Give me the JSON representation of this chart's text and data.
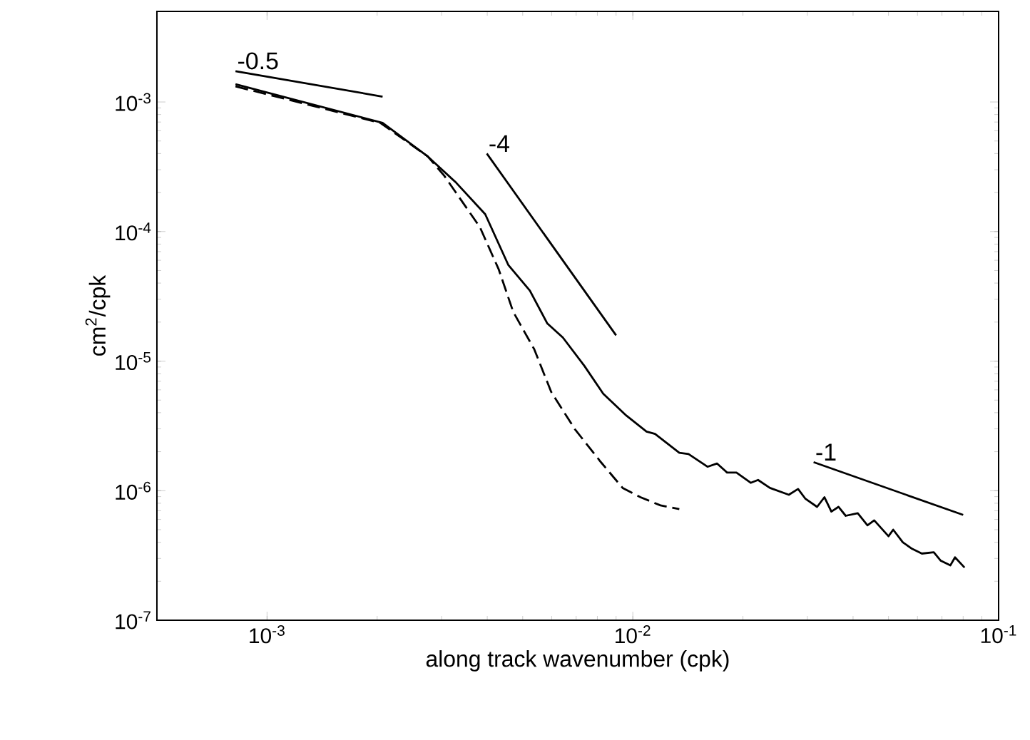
{
  "chart_data": {
    "type": "line",
    "xlabel": "along track wavenumber (cpk)",
    "ylabel": "cm$^{2}$/cpk",
    "log": "xy",
    "xlim": [
      0.0005,
      0.1
    ],
    "ylim": [
      1e-07,
      0.005
    ],
    "xticks": [
      {
        "value": 0.001,
        "label": "10$^{-3}$"
      },
      {
        "value": 0.01,
        "label": "10$^{-2}$"
      },
      {
        "value": 0.1,
        "label": "10$^{-1}$"
      }
    ],
    "yticks": [
      {
        "value": 1e-07,
        "label": "10$^{-7}$"
      },
      {
        "value": 1e-06,
        "label": "10$^{-6}$"
      },
      {
        "value": 1e-05,
        "label": "10$^{-5}$"
      },
      {
        "value": 0.0001,
        "label": "10$^{-4}$"
      },
      {
        "value": 0.001,
        "label": "10$^{-3}$"
      }
    ],
    "series": [
      {
        "color": "#000000",
        "line_style": "solid",
        "x": [
          0.00082,
          0.00207,
          0.00275,
          0.00329,
          0.00395,
          0.00457,
          0.00523,
          0.00584,
          0.00644,
          0.00737,
          0.0083,
          0.0096,
          0.0109,
          0.0115,
          0.0134,
          0.0142,
          0.016,
          0.017,
          0.0181,
          0.0192,
          0.021,
          0.022,
          0.0237,
          0.0267,
          0.0283,
          0.0296,
          0.0319,
          0.0334,
          0.0349,
          0.0365,
          0.0382,
          0.0412,
          0.0438,
          0.0457,
          0.05,
          0.0515,
          0.0547,
          0.058,
          0.0617,
          0.0665,
          0.0695,
          0.0738,
          0.076,
          0.0807
        ],
        "values": [
          0.00137,
          0.00069,
          0.00038,
          0.000238,
          0.000136,
          5.5e-05,
          3.5e-05,
          1.95e-05,
          1.52e-05,
          9.2e-06,
          5.6e-06,
          3.8e-06,
          2.86e-06,
          2.74e-06,
          1.96e-06,
          1.92e-06,
          1.53e-06,
          1.62e-06,
          1.38e-06,
          1.38e-06,
          1.15e-06,
          1.21e-06,
          1.05e-06,
          9.3e-07,
          1.03e-06,
          8.7e-07,
          7.5e-07,
          8.9e-07,
          6.9e-07,
          7.5e-07,
          6.4e-07,
          6.7e-07,
          5.4e-07,
          5.9e-07,
          4.45e-07,
          5e-07,
          4e-07,
          3.56e-07,
          3.27e-07,
          3.35e-07,
          2.88e-07,
          2.65e-07,
          3.06e-07,
          2.55e-07
        ]
      },
      {
        "color": "#000000",
        "line_style": "dashed",
        "x": [
          0.00082,
          0.00204,
          0.00275,
          0.00305,
          0.00382,
          0.0043,
          0.00471,
          0.00538,
          0.00598,
          0.00694,
          0.00818,
          0.00938,
          0.0105,
          0.0119,
          0.0134
        ],
        "values": [
          0.00132,
          0.00069,
          0.00038,
          0.00027,
          0.000108,
          5.1e-05,
          2.4e-05,
          1.23e-05,
          5.8e-06,
          2.99e-06,
          1.66e-06,
          1.05e-06,
          8.9e-07,
          7.7e-07,
          7.2e-07
        ]
      },
      {
        "color": "#000000",
        "line_style": "solid",
        "x": [
          0.00082,
          0.00207
        ],
        "values": [
          0.00173,
          0.0011
        ]
      },
      {
        "color": "#000000",
        "line_style": "solid",
        "x": [
          0.00399,
          0.009
        ],
        "values": [
          0.0004,
          1.58e-05
        ]
      },
      {
        "color": "#000000",
        "line_style": "solid",
        "x": [
          0.0312,
          0.08
        ],
        "values": [
          1.66e-06,
          6.5e-07
        ]
      }
    ],
    "annotations": [
      {
        "text": "-0.5",
        "x": 0.00082,
        "y": 0.00173
      },
      {
        "text": "-4",
        "x": 0.00399,
        "y": 0.0004
      },
      {
        "text": "-1",
        "x": 0.0312,
        "y": 1.66e-06
      }
    ]
  }
}
